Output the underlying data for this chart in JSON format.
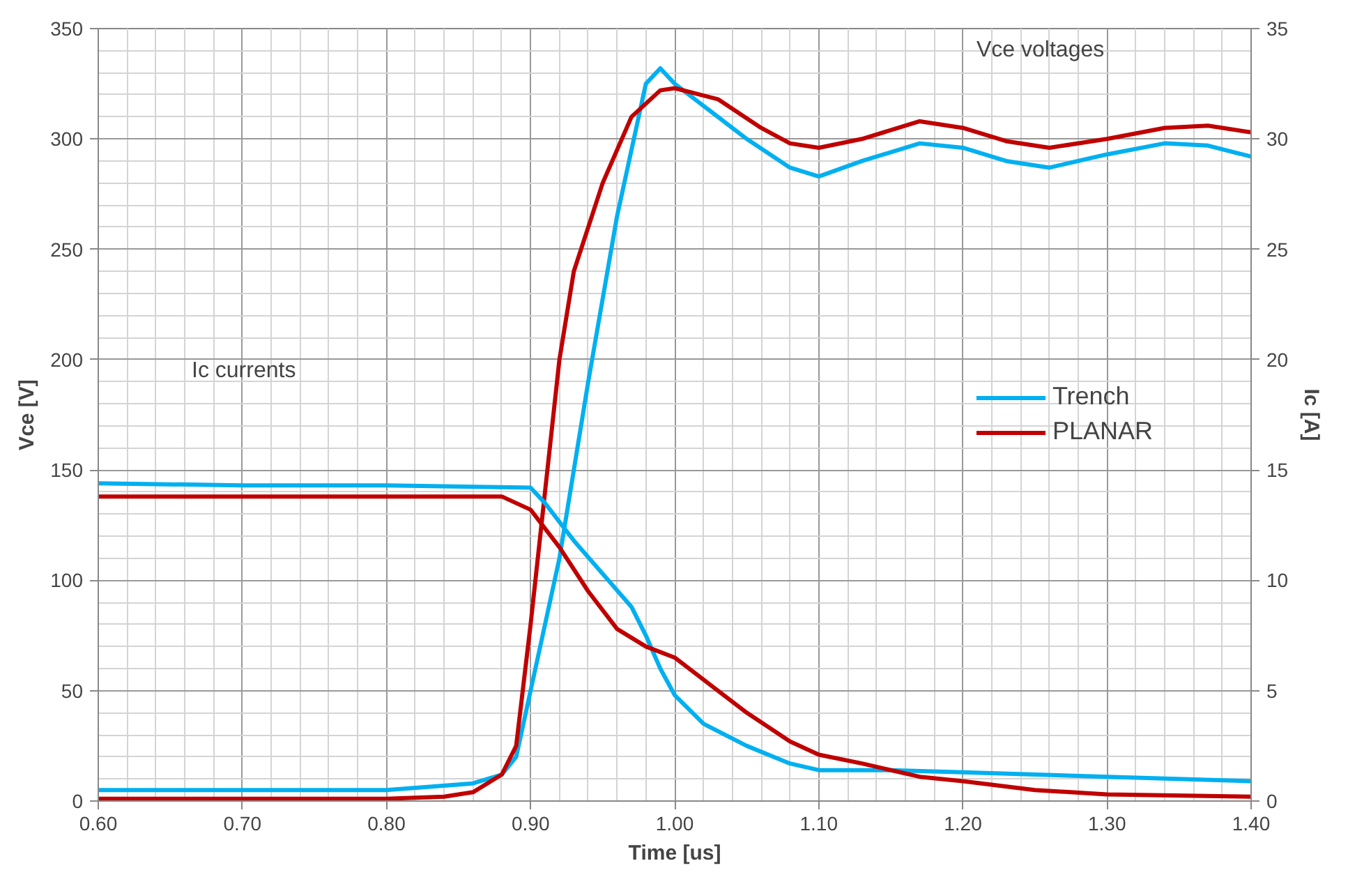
{
  "chart_data": {
    "type": "line",
    "xlabel": "Time [us]",
    "ylabel": "Vce [V]",
    "y2label": "Ic [A]",
    "xlim": [
      0.6,
      1.4
    ],
    "xticks": [
      {
        "value": 0.6,
        "label": "0.60"
      },
      {
        "value": 0.7,
        "label": "0.70"
      },
      {
        "value": 0.8,
        "label": "0.80"
      },
      {
        "value": 0.9,
        "label": "0.90"
      },
      {
        "value": 1.0,
        "label": "1.00"
      },
      {
        "value": 1.1,
        "label": "1.10"
      },
      {
        "value": 1.2,
        "label": "1.20"
      },
      {
        "value": 1.3,
        "label": "1.30"
      },
      {
        "value": 1.4,
        "label": "1.40"
      }
    ],
    "ylim": [
      0,
      350
    ],
    "yticks": [
      0,
      50,
      100,
      150,
      200,
      250,
      300,
      350
    ],
    "y2lim": [
      0,
      35
    ],
    "y2ticks": [
      0,
      5,
      10,
      15,
      20,
      25,
      30,
      35
    ],
    "grid": true,
    "legend": "right",
    "line_style": "solid",
    "marker": "none",
    "annotations": [
      "Ic currents",
      "Vce voltages"
    ],
    "series": [
      {
        "name": "Trench",
        "color": "#00b0f0",
        "x": [
          0.6,
          0.7,
          0.8,
          0.86,
          0.88,
          0.89,
          0.9,
          0.92,
          0.94,
          0.96,
          0.98,
          0.99,
          1.0,
          1.02,
          1.05,
          1.08,
          1.1,
          1.13,
          1.17,
          1.2,
          1.23,
          1.26,
          1.3,
          1.34,
          1.37,
          1.4
        ],
        "values": [
          5,
          5,
          5,
          8,
          12,
          20,
          50,
          110,
          190,
          265,
          325,
          332,
          325,
          315,
          300,
          287,
          283,
          290,
          298,
          296,
          290,
          287,
          293,
          298,
          297,
          292
        ]
      },
      {
        "name": "PLANAR",
        "color": "#c00000",
        "x": [
          0.6,
          0.7,
          0.8,
          0.84,
          0.86,
          0.88,
          0.89,
          0.9,
          0.91,
          0.92,
          0.93,
          0.95,
          0.97,
          0.99,
          1.0,
          1.03,
          1.06,
          1.08,
          1.1,
          1.13,
          1.17,
          1.2,
          1.23,
          1.26,
          1.3,
          1.34,
          1.37,
          1.4
        ],
        "values": [
          1,
          1,
          1,
          2,
          4,
          12,
          25,
          80,
          140,
          200,
          240,
          280,
          310,
          322,
          323,
          318,
          305,
          298,
          296,
          300,
          308,
          305,
          299,
          296,
          300,
          305,
          306,
          303
        ]
      },
      {
        "color": "#00b0f0",
        "axis": "y2",
        "x": [
          0.6,
          0.7,
          0.8,
          0.9,
          0.91,
          0.93,
          0.95,
          0.97,
          0.98,
          0.99,
          1.0,
          1.02,
          1.05,
          1.08,
          1.1,
          1.15,
          1.2,
          1.3,
          1.4
        ],
        "values": [
          14.4,
          14.3,
          14.3,
          14.2,
          13.5,
          11.8,
          10.3,
          8.8,
          7.5,
          6.0,
          4.8,
          3.5,
          2.5,
          1.7,
          1.4,
          1.4,
          1.3,
          1.1,
          0.9
        ]
      },
      {
        "color": "#c00000",
        "axis": "y2",
        "x": [
          0.6,
          0.7,
          0.8,
          0.88,
          0.9,
          0.92,
          0.94,
          0.96,
          0.98,
          1.0,
          1.02,
          1.05,
          1.08,
          1.1,
          1.13,
          1.17,
          1.2,
          1.25,
          1.3,
          1.4
        ],
        "values": [
          13.8,
          13.8,
          13.8,
          13.8,
          13.2,
          11.5,
          9.5,
          7.8,
          7.0,
          6.5,
          5.5,
          4.0,
          2.7,
          2.1,
          1.7,
          1.1,
          0.9,
          0.5,
          0.3,
          0.2
        ]
      }
    ]
  }
}
